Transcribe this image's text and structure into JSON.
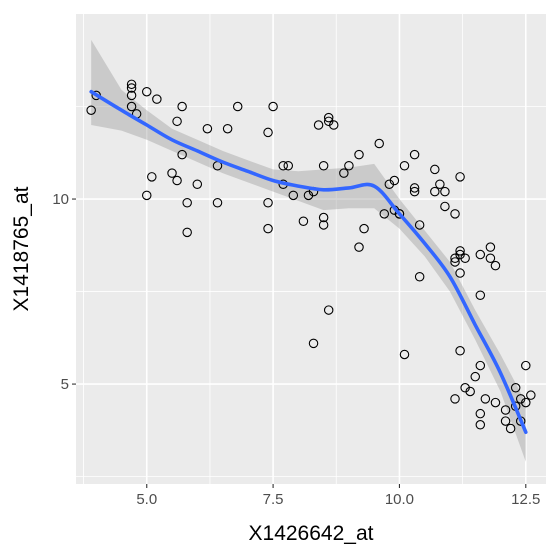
{
  "chart_data": {
    "type": "scatter",
    "title": "",
    "xlabel": "X1426642_at",
    "ylabel": "X1418765_at",
    "xlim": [
      3.6,
      12.9
    ],
    "ylim": [
      2.3,
      15.0
    ],
    "xticks": [
      5.0,
      7.5,
      10.0,
      12.5
    ],
    "xtick_labels": [
      "5.0",
      "7.5",
      "10.0",
      "12.5"
    ],
    "yticks": [
      5,
      10
    ],
    "ytick_labels": [
      "5",
      "10"
    ],
    "grid": true,
    "legend": "none",
    "colors": {
      "panel": "#ebebeb",
      "grid": "#ffffff",
      "points": "#000000",
      "smooth_line": "#3366ff",
      "ribbon": "#999999"
    },
    "points": [
      [
        3.9,
        12.4
      ],
      [
        4.0,
        12.8
      ],
      [
        4.7,
        13.1
      ],
      [
        4.7,
        13.0
      ],
      [
        4.7,
        12.8
      ],
      [
        4.7,
        12.5
      ],
      [
        4.8,
        12.3
      ],
      [
        5.0,
        12.9
      ],
      [
        5.0,
        10.1
      ],
      [
        5.1,
        10.6
      ],
      [
        5.2,
        12.7
      ],
      [
        5.5,
        10.7
      ],
      [
        5.6,
        12.1
      ],
      [
        5.6,
        10.5
      ],
      [
        5.7,
        11.2
      ],
      [
        5.7,
        12.5
      ],
      [
        5.8,
        9.1
      ],
      [
        5.8,
        9.9
      ],
      [
        6.0,
        10.4
      ],
      [
        6.2,
        11.9
      ],
      [
        6.4,
        10.9
      ],
      [
        6.4,
        9.9
      ],
      [
        6.6,
        11.9
      ],
      [
        6.8,
        12.5
      ],
      [
        7.4,
        11.8
      ],
      [
        7.4,
        9.9
      ],
      [
        7.4,
        9.2
      ],
      [
        7.5,
        12.5
      ],
      [
        7.7,
        10.9
      ],
      [
        7.7,
        10.4
      ],
      [
        7.8,
        10.9
      ],
      [
        7.9,
        10.1
      ],
      [
        8.1,
        9.4
      ],
      [
        8.2,
        10.1
      ],
      [
        8.3,
        10.2
      ],
      [
        8.3,
        6.1
      ],
      [
        8.4,
        12.0
      ],
      [
        8.5,
        10.9
      ],
      [
        8.5,
        9.5
      ],
      [
        8.5,
        9.3
      ],
      [
        8.6,
        7.0
      ],
      [
        8.6,
        12.1
      ],
      [
        8.6,
        12.2
      ],
      [
        8.7,
        12.0
      ],
      [
        8.9,
        10.7
      ],
      [
        9.0,
        10.9
      ],
      [
        9.2,
        11.2
      ],
      [
        9.2,
        8.7
      ],
      [
        9.3,
        9.2
      ],
      [
        9.6,
        11.5
      ],
      [
        9.7,
        9.6
      ],
      [
        9.8,
        10.4
      ],
      [
        9.9,
        10.5
      ],
      [
        9.9,
        9.7
      ],
      [
        10.0,
        9.6
      ],
      [
        10.0,
        9.6
      ],
      [
        10.1,
        10.9
      ],
      [
        10.1,
        5.8
      ],
      [
        10.3,
        10.3
      ],
      [
        10.3,
        11.2
      ],
      [
        10.3,
        10.2
      ],
      [
        10.4,
        7.9
      ],
      [
        10.4,
        9.3
      ],
      [
        10.7,
        10.2
      ],
      [
        10.7,
        10.8
      ],
      [
        10.8,
        10.4
      ],
      [
        10.9,
        9.8
      ],
      [
        10.9,
        10.2
      ],
      [
        11.1,
        9.6
      ],
      [
        11.1,
        8.3
      ],
      [
        11.1,
        8.4
      ],
      [
        11.2,
        8.5
      ],
      [
        11.2,
        8.6
      ],
      [
        11.2,
        8.0
      ],
      [
        11.2,
        10.6
      ],
      [
        11.2,
        5.9
      ],
      [
        11.1,
        4.6
      ],
      [
        11.3,
        4.9
      ],
      [
        11.3,
        8.4
      ],
      [
        11.4,
        4.8
      ],
      [
        11.5,
        5.2
      ],
      [
        11.6,
        8.5
      ],
      [
        11.6,
        7.4
      ],
      [
        11.6,
        5.5
      ],
      [
        11.6,
        4.2
      ],
      [
        11.6,
        3.9
      ],
      [
        11.7,
        4.6
      ],
      [
        11.8,
        8.7
      ],
      [
        11.8,
        8.4
      ],
      [
        11.9,
        8.2
      ],
      [
        11.9,
        4.5
      ],
      [
        12.1,
        4.0
      ],
      [
        12.1,
        4.3
      ],
      [
        12.2,
        3.8
      ],
      [
        12.3,
        4.9
      ],
      [
        12.3,
        4.4
      ],
      [
        12.4,
        4.0
      ],
      [
        12.4,
        4.6
      ],
      [
        12.5,
        4.5
      ],
      [
        12.5,
        5.5
      ],
      [
        12.6,
        4.7
      ]
    ],
    "smooth": {
      "x": [
        3.9,
        4.5,
        5.0,
        5.5,
        6.0,
        6.5,
        7.0,
        7.5,
        8.0,
        8.5,
        9.0,
        9.5,
        10.0,
        10.5,
        11.0,
        11.5,
        12.0,
        12.5
      ],
      "y": [
        12.9,
        12.4,
        12.0,
        11.6,
        11.3,
        11.0,
        10.75,
        10.5,
        10.35,
        10.25,
        10.3,
        10.35,
        9.6,
        8.8,
        7.9,
        6.6,
        5.3,
        3.7
      ],
      "lower": [
        12.0,
        11.85,
        11.6,
        11.3,
        11.0,
        10.7,
        10.45,
        10.2,
        9.95,
        9.7,
        9.75,
        9.75,
        9.2,
        8.45,
        7.5,
        6.2,
        4.8,
        2.9
      ],
      "upper": [
        14.3,
        12.95,
        12.4,
        11.9,
        11.6,
        11.3,
        11.05,
        10.8,
        10.75,
        10.8,
        10.85,
        10.95,
        10.0,
        9.15,
        8.3,
        7.0,
        5.8,
        4.5
      ]
    }
  }
}
